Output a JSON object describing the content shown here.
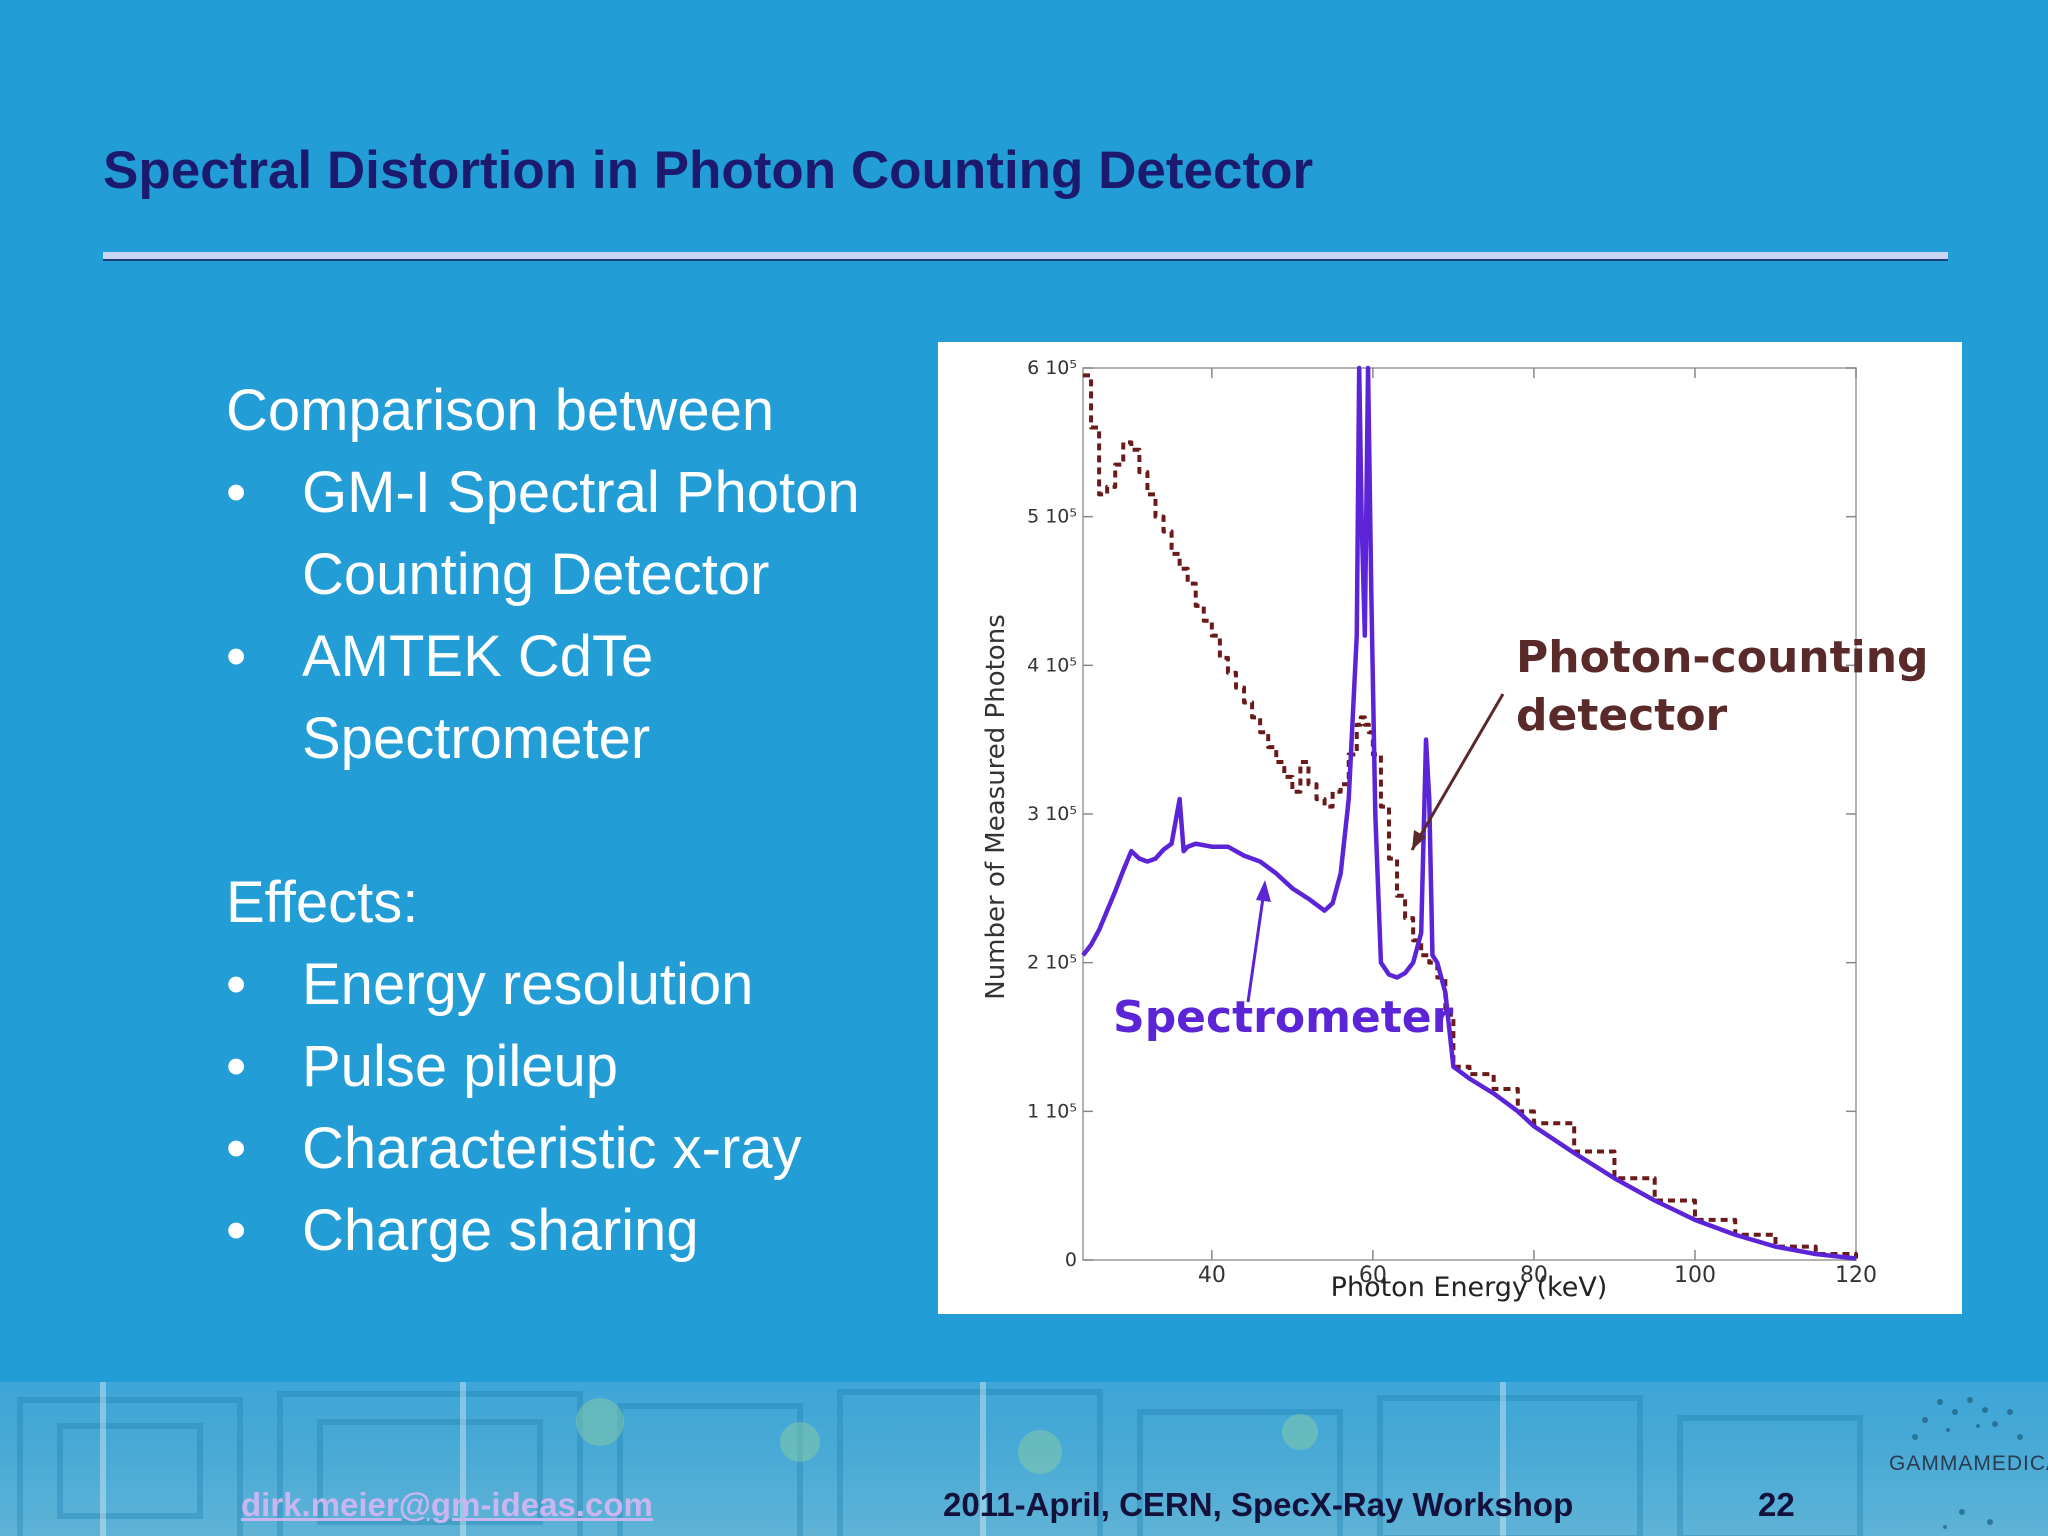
{
  "slide": {
    "title": "Spectral Distortion in Photon Counting Detector",
    "comparison_heading": "Comparison between",
    "comparison_items": [
      {
        "line1": "GM-I Spectral Photon",
        "line2": "Counting Detector"
      },
      {
        "line1": "AMTEK CdTe",
        "line2": "Spectrometer"
      }
    ],
    "effects_heading": "Effects:",
    "effects_items": [
      "Energy resolution",
      "Pulse pileup",
      "Characteristic x-ray",
      "Charge sharing"
    ],
    "bullet": "•"
  },
  "chart_data": {
    "type": "line",
    "xlabel": "Photon Energy (keV)",
    "ylabel": "Number of Measured Photons",
    "xlim": [
      24,
      120
    ],
    "ylim": [
      0,
      600000
    ],
    "x_ticks": [
      40,
      60,
      80,
      100,
      120
    ],
    "y_ticks": [
      {
        "value": 0,
        "label": "0"
      },
      {
        "value": 100000,
        "label": "1 10⁵"
      },
      {
        "value": 200000,
        "label": "2 10⁵"
      },
      {
        "value": 300000,
        "label": "3 10⁵"
      },
      {
        "value": 400000,
        "label": "4 10⁵"
      },
      {
        "value": 500000,
        "label": "5 10⁵"
      },
      {
        "value": 600000,
        "label": "6 10⁵"
      }
    ],
    "series": [
      {
        "name": "Photon-counting detector",
        "color": "#6b1a1a",
        "style": "dashed",
        "x": [
          24,
          25,
          26,
          27,
          28,
          29,
          30,
          31,
          32,
          33,
          34,
          35,
          36,
          37,
          38,
          39,
          40,
          41,
          42,
          43,
          44,
          45,
          46,
          47,
          48,
          49,
          50,
          51,
          52,
          53,
          54,
          55,
          56,
          57,
          58,
          58.5,
          59,
          59.5,
          60,
          61,
          62,
          63,
          64,
          65,
          66,
          67,
          68,
          69,
          70,
          72,
          75,
          78,
          80,
          85,
          90,
          95,
          100,
          105,
          110,
          115,
          120
        ],
        "y": [
          595000,
          560000,
          515000,
          520000,
          535000,
          550000,
          545000,
          530000,
          515000,
          500000,
          490000,
          475000,
          465000,
          455000,
          440000,
          430000,
          420000,
          405000,
          395000,
          385000,
          375000,
          365000,
          355000,
          345000,
          335000,
          325000,
          315000,
          335000,
          320000,
          310000,
          305000,
          315000,
          320000,
          340000,
          360000,
          365000,
          360000,
          355000,
          340000,
          305000,
          270000,
          245000,
          230000,
          215000,
          205000,
          200000,
          190000,
          165000,
          130000,
          125000,
          115000,
          100000,
          92000,
          73000,
          55000,
          40000,
          27000,
          17000,
          9000,
          4000,
          1000
        ]
      },
      {
        "name": "Spectrometer",
        "color": "#5b24d6",
        "style": "solid",
        "x": [
          24,
          25,
          26,
          27,
          28,
          29,
          30,
          31,
          32,
          33,
          34,
          35,
          36,
          36.5,
          37,
          38,
          40,
          42,
          44,
          45,
          46,
          48,
          50,
          52,
          54,
          55,
          56,
          57,
          58,
          58.3,
          58.6,
          59,
          59.4,
          59.8,
          60.3,
          61,
          62,
          63,
          64,
          65,
          66,
          66.6,
          67,
          67.4,
          68,
          69,
          70,
          72,
          75,
          78,
          80,
          85,
          90,
          95,
          100,
          105,
          110,
          115,
          120
        ],
        "y": [
          205000,
          212000,
          222000,
          235000,
          248000,
          262000,
          275000,
          270000,
          268000,
          270000,
          276000,
          280000,
          310000,
          275000,
          278000,
          280000,
          278000,
          278000,
          272000,
          270000,
          268000,
          260000,
          250000,
          243000,
          235000,
          240000,
          260000,
          310000,
          420000,
          600000,
          500000,
          420000,
          600000,
          450000,
          300000,
          200000,
          192000,
          190000,
          193000,
          200000,
          220000,
          350000,
          310000,
          205000,
          200000,
          180000,
          130000,
          122000,
          112000,
          100000,
          90000,
          72000,
          55000,
          40000,
          27000,
          17000,
          9000,
          4000,
          1000
        ]
      }
    ],
    "annotations": [
      {
        "line1": "Photon-counting",
        "line2": "detector",
        "color": "#6b1a1a"
      },
      {
        "line1": "Spectrometer",
        "line2": "",
        "color": "#5b24d6"
      }
    ]
  },
  "footer": {
    "email": "dirk.meier@gm-ideas.com",
    "event": "2011-April, CERN, SpecX-Ray  Workshop",
    "page": "22",
    "logo": "GAMMAMEDICA"
  }
}
